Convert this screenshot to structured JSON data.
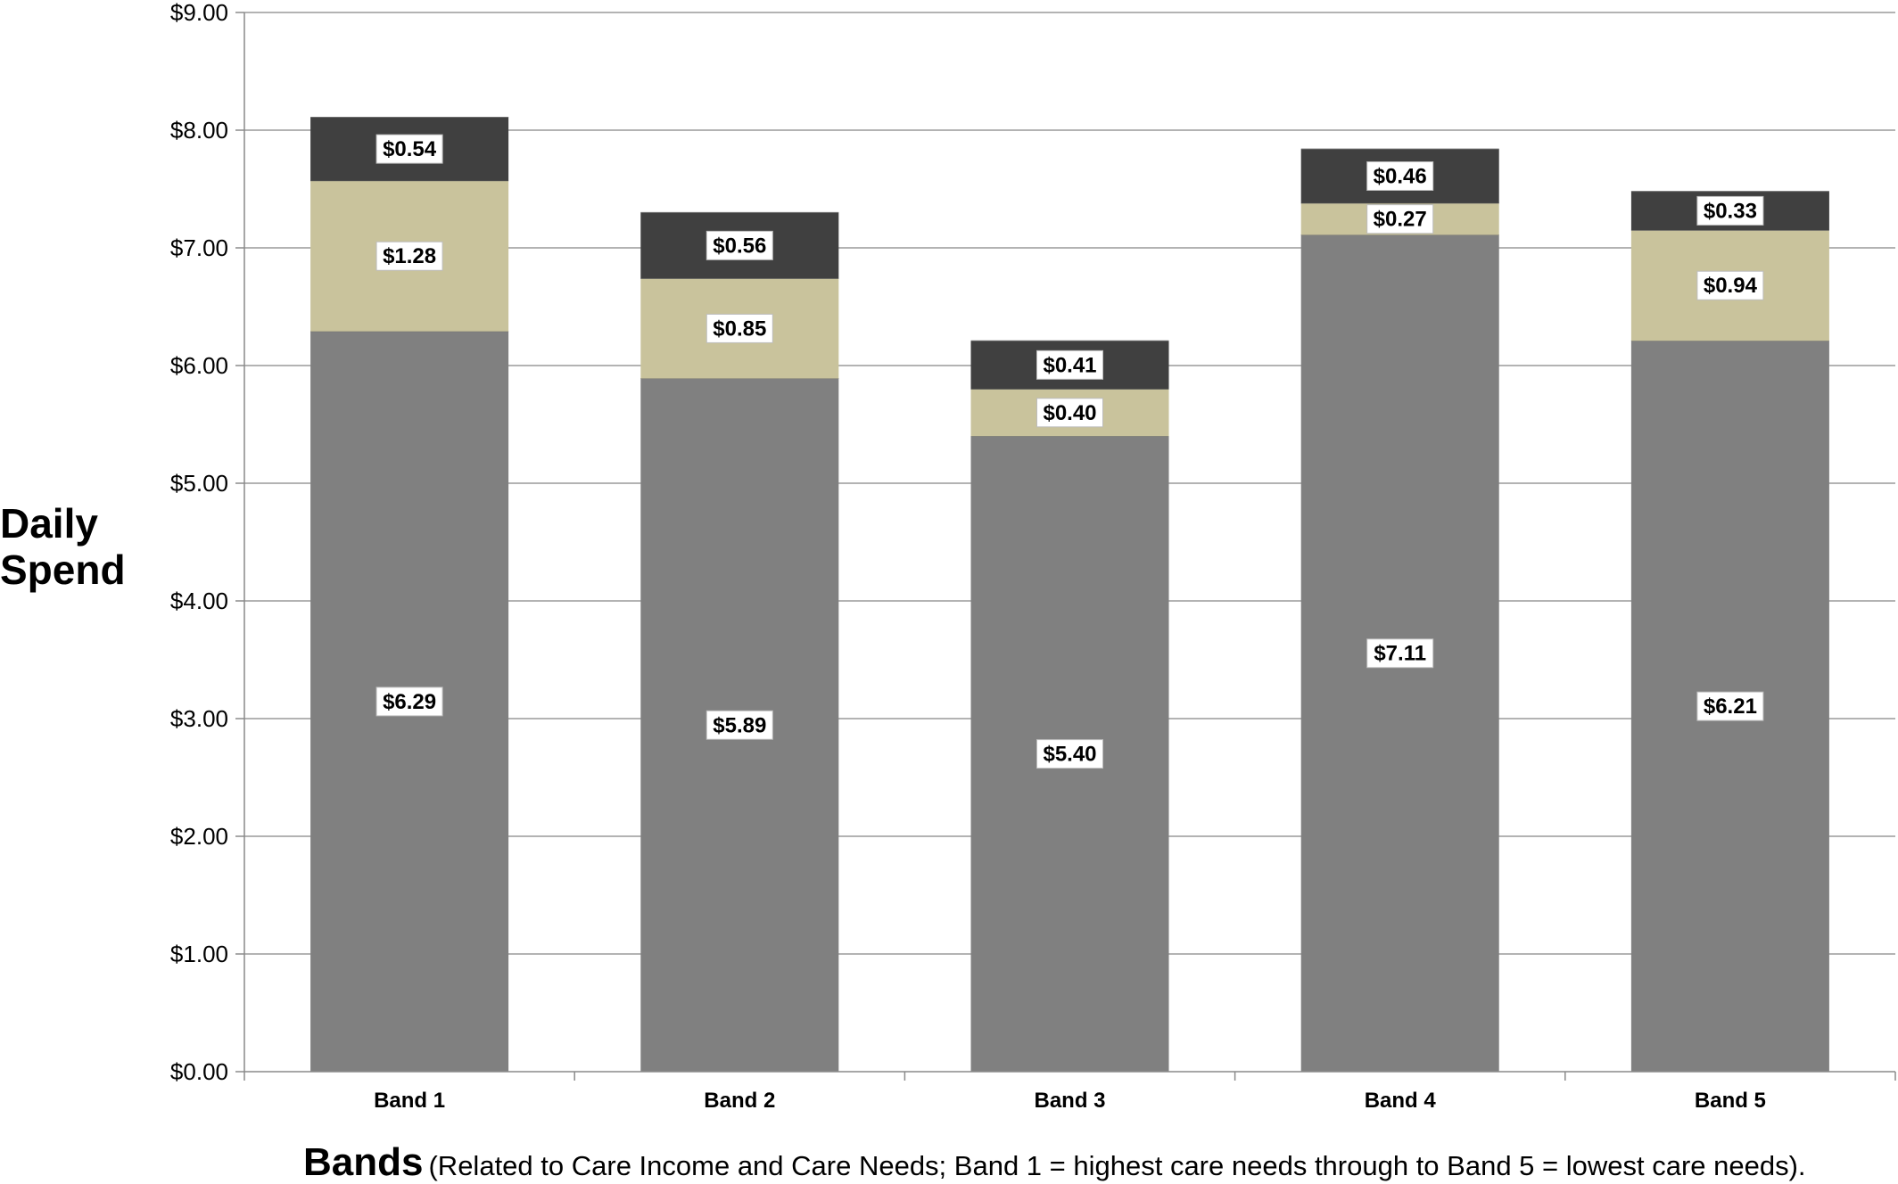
{
  "chart_data": {
    "type": "bar",
    "stacked": true,
    "categories": [
      "Band 1",
      "Band 2",
      "Band 3",
      "Band 4",
      "Band 5"
    ],
    "series": [
      {
        "values": [
          6.29,
          5.89,
          5.4,
          7.11,
          6.21
        ],
        "labels": [
          "$6.29",
          "$5.89",
          "$5.40",
          "$7.11",
          "$6.21"
        ],
        "color": "#808080"
      },
      {
        "values": [
          1.28,
          0.85,
          0.4,
          0.27,
          0.94
        ],
        "labels": [
          "$1.28",
          "$0.85",
          "$0.40",
          "$0.27",
          "$0.94"
        ],
        "color": "#c9c39c"
      },
      {
        "values": [
          0.54,
          0.56,
          0.41,
          0.46,
          0.33
        ],
        "labels": [
          "$0.54",
          "$0.56",
          "$0.41",
          "$0.46",
          "$0.33"
        ],
        "color": "#404040"
      }
    ],
    "ylim": [
      0,
      9
    ],
    "yticks": [
      0,
      1,
      2,
      3,
      4,
      5,
      6,
      7,
      8,
      9
    ],
    "ytick_labels": [
      "$0.00",
      "$1.00",
      "$2.00",
      "$3.00",
      "$4.00",
      "$5.00",
      "$6.00",
      "$7.00",
      "$8.00",
      "$9.00"
    ],
    "ylabel_lines": [
      "Daily",
      "Spend"
    ],
    "xlabel": "Bands",
    "xlabel_note": "(Related to Care Income and Care Needs; Band 1 = highest care needs through to  Band 5 = lowest care needs).",
    "grid": true,
    "legend": "none"
  }
}
